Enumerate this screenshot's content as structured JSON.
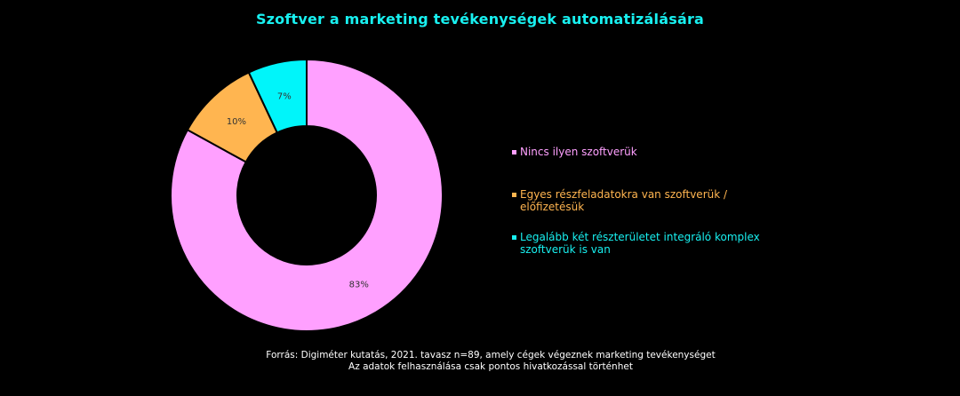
{
  "chart_data": {
    "type": "pie",
    "title": "Szoftver a marketing tevékenységek automatizálására",
    "categories": [
      "Nincs ilyen szoftverük",
      "Egyes részfeladatokra van szoftverük / előfizetésük",
      "Legalább két részterületet integráló komplex szoftverük is van"
    ],
    "values": [
      83,
      10,
      7
    ],
    "value_labels": [
      "83%",
      "10%",
      "7%"
    ],
    "colors": [
      "#FFA0FF",
      "#FFB550",
      "#00F5FA"
    ],
    "legend_colors": [
      "#FFA0FF",
      "#FFB550",
      "#18F0F0"
    ],
    "legend_position": "right",
    "donut": true
  },
  "footer": {
    "line1": "Forrás: Digiméter kutatás, 2021. tavasz n=89, amely cégek végeznek marketing tevékenységet",
    "line2": "Az adatok felhasználása csak pontos hivatkozással történhet"
  }
}
